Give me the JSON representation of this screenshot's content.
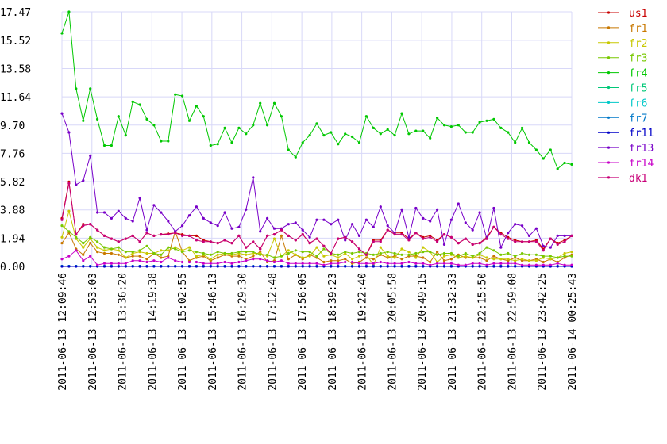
{
  "chart_data": {
    "type": "line",
    "title": "",
    "xlabel": "",
    "ylabel": "",
    "ylim": [
      0,
      17.47
    ],
    "y_ticks": [
      "0.00",
      "1.94",
      "3.88",
      "5.82",
      "7.76",
      "9.70",
      "11.64",
      "13.58",
      "15.52",
      "17.47"
    ],
    "x_ticks": [
      "2011-06-13 12:09:46",
      "2011-06-13 12:53:03",
      "2011-06-13 13:36:20",
      "2011-06-13 14:19:38",
      "2011-06-13 15:02:55",
      "2011-06-13 15:46:13",
      "2011-06-13 16:29:30",
      "2011-06-13 17:12:48",
      "2011-06-13 17:56:05",
      "2011-06-13 18:39:23",
      "2011-06-13 19:22:40",
      "2011-06-13 20:05:58",
      "2011-06-13 20:49:15",
      "2011-06-13 21:32:33",
      "2011-06-13 22:15:50",
      "2011-06-13 22:59:08",
      "2011-06-13 23:42:25",
      "2011-06-14 00:25:43"
    ],
    "grid": true,
    "legend_position": "right",
    "series": [
      {
        "name": "us1",
        "color": "#c80000",
        "values": [
          3.3,
          5.8,
          2.2,
          2.9,
          2.9,
          2.5,
          2.1,
          1.9,
          1.7,
          1.9,
          2.1,
          1.7,
          2.3,
          2.1,
          2.2,
          2.25,
          2.3,
          2.2,
          2.1,
          2.1,
          1.8,
          1.7,
          1.6,
          1.8,
          1.6,
          2.1,
          1.3,
          1.7,
          1.2,
          2.1,
          2.2,
          2.5,
          2.1,
          1.8,
          2.2,
          1.6,
          1.9,
          1.4,
          0.9,
          1.9,
          2.0,
          1.7,
          1.2,
          0.8,
          1.8,
          1.8,
          2.5,
          2.3,
          2.3,
          1.9,
          2.3,
          2.0,
          2.1,
          1.8,
          2.2,
          2.0,
          1.6,
          1.9,
          1.5,
          1.6,
          2.0,
          2.7,
          2.3,
          2.0,
          1.8,
          1.7,
          1.7,
          1.8,
          1.2,
          1.9,
          1.6,
          1.8,
          2.1
        ]
      },
      {
        "name": "fr1",
        "color": "#c87800",
        "values": [
          1.6,
          2.3,
          1.2,
          0.8,
          1.6,
          1.0,
          0.9,
          0.9,
          0.8,
          0.6,
          0.7,
          0.7,
          0.5,
          0.9,
          0.6,
          0.7,
          2.4,
          1.0,
          0.4,
          0.6,
          0.7,
          0.4,
          0.6,
          0.8,
          0.7,
          0.7,
          0.5,
          0.7,
          1.0,
          0.3,
          0.4,
          2.1,
          0.5,
          0.8,
          0.5,
          0.8,
          0.6,
          0.3,
          0.4,
          0.4,
          0.5,
          0.2,
          0.3,
          0.6,
          0.5,
          0.8,
          0.6,
          0.7,
          0.5,
          0.7,
          0.7,
          0.6,
          0.3,
          1.0,
          0.4,
          0.5,
          0.8,
          0.6,
          0.6,
          0.6,
          0.4,
          0.7,
          0.5,
          0.4,
          0.6,
          0.4,
          0.4,
          0.5,
          0.3,
          0.5,
          0.3,
          0.6,
          0.8
        ]
      },
      {
        "name": "fr2",
        "color": "#c8c800",
        "values": [
          2.0,
          3.8,
          1.9,
          1.3,
          1.9,
          1.3,
          1.1,
          1.2,
          1.1,
          0.6,
          0.9,
          1.0,
          0.9,
          0.9,
          1.1,
          1.1,
          1.3,
          1.1,
          1.3,
          0.7,
          0.8,
          0.5,
          0.8,
          0.9,
          0.8,
          0.9,
          0.8,
          0.9,
          0.9,
          0.7,
          1.9,
          0.7,
          1.1,
          0.8,
          0.6,
          0.7,
          1.3,
          0.7,
          0.8,
          0.6,
          0.9,
          0.5,
          0.7,
          0.8,
          0.1,
          1.3,
          0.7,
          0.6,
          1.2,
          1.0,
          0.6,
          1.3,
          1.0,
          0.3,
          0.7,
          0.8,
          0.6,
          0.7,
          0.6,
          0.8,
          0.6,
          0.5,
          0.5,
          0.5,
          0.4,
          0.5,
          0.4,
          0.4,
          0.6,
          0.5,
          0.6,
          0.9,
          1.0
        ]
      },
      {
        "name": "fr3",
        "color": "#78c800",
        "values": [
          2.8,
          2.4,
          2.0,
          1.6,
          2.0,
          1.7,
          1.3,
          1.2,
          1.3,
          1.0,
          1.0,
          1.1,
          1.4,
          0.9,
          0.8,
          1.3,
          1.2,
          1.0,
          1.1,
          1.0,
          0.9,
          0.8,
          1.0,
          0.9,
          0.9,
          1.0,
          1.0,
          1.0,
          0.8,
          0.8,
          0.6,
          0.7,
          0.9,
          1.1,
          1.0,
          1.0,
          0.7,
          1.2,
          0.9,
          0.8,
          1.0,
          0.9,
          1.0,
          0.9,
          0.8,
          0.9,
          1.0,
          0.9,
          0.8,
          0.8,
          0.9,
          1.0,
          1.0,
          0.8,
          0.9,
          0.9,
          0.7,
          0.9,
          0.7,
          0.9,
          1.3,
          1.1,
          0.8,
          0.9,
          0.7,
          0.9,
          0.8,
          0.8,
          0.7,
          0.7,
          0.6,
          0.7,
          0.7
        ]
      },
      {
        "name": "fr4",
        "color": "#00c800",
        "values": [
          16.0,
          17.47,
          12.2,
          10.0,
          12.2,
          10.1,
          8.3,
          8.3,
          10.3,
          9.0,
          11.3,
          11.1,
          10.1,
          9.7,
          8.6,
          8.6,
          11.8,
          11.7,
          10.0,
          11.0,
          10.3,
          8.3,
          8.4,
          9.5,
          8.5,
          9.5,
          9.1,
          9.7,
          11.2,
          9.7,
          11.2,
          10.3,
          8.0,
          7.5,
          8.5,
          9.0,
          9.8,
          9.0,
          9.2,
          8.4,
          9.1,
          8.9,
          8.5,
          10.3,
          9.5,
          9.1,
          9.4,
          9.0,
          10.5,
          9.1,
          9.3,
          9.3,
          8.8,
          10.2,
          9.7,
          9.6,
          9.7,
          9.2,
          9.2,
          9.9,
          10.0,
          10.1,
          9.5,
          9.2,
          8.5,
          9.5,
          8.5,
          8.0,
          7.4,
          8.0,
          6.7,
          7.1,
          7.0
        ]
      },
      {
        "name": "fr5",
        "color": "#00c878",
        "values": [
          0.02,
          0.02,
          0.02,
          0.02,
          0.02,
          0.02,
          0.02,
          0.02,
          0.02,
          0.02,
          0.02,
          0.02,
          0.02,
          0.02,
          0.02,
          0.02,
          0.02,
          0.02,
          0.02,
          0.02,
          0.02,
          0.02,
          0.02,
          0.02,
          0.02,
          0.02,
          0.02,
          0.02,
          0.02,
          0.02,
          0.02,
          0.02,
          0.02,
          0.02,
          0.02,
          0.02,
          0.02,
          0.02,
          0.02,
          0.02,
          0.02,
          0.02,
          0.02,
          0.02,
          0.02,
          0.02,
          0.02,
          0.02,
          0.02,
          0.02,
          0.02,
          0.02,
          0.02,
          0.02,
          0.02,
          0.02,
          0.02,
          0.02,
          0.02,
          0.02,
          0.02,
          0.02,
          0.02,
          0.02,
          0.02,
          0.02,
          0.02,
          0.02,
          0.02,
          0.02,
          0.02,
          0.02,
          0.02
        ]
      },
      {
        "name": "fr6",
        "color": "#00c8c8",
        "values": [
          0.02,
          0.02,
          0.02,
          0.02,
          0.02,
          0.02,
          0.02,
          0.02,
          0.02,
          0.02,
          0.02,
          0.02,
          0.02,
          0.02,
          0.02,
          0.02,
          0.02,
          0.02,
          0.02,
          0.02,
          0.02,
          0.02,
          0.02,
          0.02,
          0.02,
          0.02,
          0.02,
          0.02,
          0.02,
          0.02,
          0.02,
          0.02,
          0.02,
          0.02,
          0.02,
          0.02,
          0.02,
          0.02,
          0.02,
          0.02,
          0.02,
          0.02,
          0.02,
          0.02,
          0.02,
          0.02,
          0.02,
          0.02,
          0.02,
          0.02,
          0.02,
          0.02,
          0.02,
          0.02,
          0.02,
          0.02,
          0.02,
          0.02,
          0.02,
          0.02,
          0.02,
          0.02,
          0.02,
          0.02,
          0.02,
          0.02,
          0.02,
          0.02,
          0.02,
          0.02,
          0.02,
          0.02,
          0.02
        ]
      },
      {
        "name": "fr7",
        "color": "#0078c8",
        "values": [
          0.02,
          0.02,
          0.02,
          0.02,
          0.02,
          0.02,
          0.02,
          0.02,
          0.02,
          0.02,
          0.02,
          0.02,
          0.02,
          0.02,
          0.02,
          0.02,
          0.02,
          0.02,
          0.02,
          0.02,
          0.02,
          0.02,
          0.02,
          0.02,
          0.02,
          0.02,
          0.02,
          0.02,
          0.02,
          0.02,
          0.02,
          0.02,
          0.02,
          0.02,
          0.02,
          0.02,
          0.02,
          0.02,
          0.02,
          0.02,
          0.02,
          0.02,
          0.02,
          0.02,
          0.02,
          0.02,
          0.02,
          0.02,
          0.02,
          0.02,
          0.02,
          0.02,
          0.02,
          0.02,
          0.02,
          0.02,
          0.02,
          0.02,
          0.02,
          0.02,
          0.02,
          0.02,
          0.02,
          0.02,
          0.02,
          0.02,
          0.02,
          0.02,
          0.02,
          0.02,
          0.02,
          0.02,
          0.02
        ]
      },
      {
        "name": "fr11",
        "color": "#0000c8",
        "values": [
          0.0,
          0.0,
          0.0,
          0.0,
          0.0,
          0.0,
          0.0,
          0.0,
          0.0,
          0.0,
          0.0,
          0.0,
          0.0,
          0.0,
          0.0,
          0.0,
          0.0,
          0.0,
          0.0,
          0.0,
          0.0,
          0.0,
          0.0,
          0.0,
          0.0,
          0.0,
          0.0,
          0.0,
          0.0,
          0.0,
          0.0,
          0.0,
          0.0,
          0.0,
          0.0,
          0.0,
          0.0,
          0.0,
          0.0,
          0.0,
          0.0,
          0.0,
          0.0,
          0.0,
          0.0,
          0.0,
          0.0,
          0.0,
          0.0,
          0.0,
          0.0,
          0.0,
          0.0,
          0.0,
          0.0,
          0.0,
          0.0,
          0.0,
          0.0,
          0.0,
          0.0,
          0.0,
          0.0,
          0.0,
          0.0,
          0.0,
          0.0,
          0.0,
          0.0,
          0.0,
          0.0,
          0.0,
          0.0
        ]
      },
      {
        "name": "fr13",
        "color": "#7800c8",
        "values": [
          10.5,
          9.2,
          5.6,
          5.9,
          7.6,
          3.7,
          3.7,
          3.3,
          3.8,
          3.3,
          3.1,
          4.7,
          2.5,
          4.2,
          3.7,
          3.1,
          2.4,
          2.8,
          3.5,
          4.1,
          3.3,
          3.0,
          2.8,
          3.7,
          2.6,
          2.7,
          3.9,
          6.1,
          2.4,
          3.3,
          2.6,
          2.6,
          2.9,
          3.0,
          2.5,
          2.0,
          3.2,
          3.2,
          2.9,
          3.2,
          1.8,
          2.9,
          2.1,
          3.2,
          2.7,
          4.1,
          2.8,
          2.3,
          3.9,
          2.0,
          4.0,
          3.3,
          3.1,
          3.9,
          1.5,
          3.2,
          4.3,
          3.0,
          2.5,
          3.7,
          1.9,
          4.0,
          1.3,
          2.3,
          2.9,
          2.8,
          2.1,
          2.6,
          1.4,
          1.3,
          2.1,
          2.1,
          2.1
        ]
      },
      {
        "name": "fr14",
        "color": "#c800c8",
        "values": [
          0.5,
          0.7,
          1.1,
          0.4,
          0.7,
          0.1,
          0.2,
          0.2,
          0.2,
          0.2,
          0.4,
          0.4,
          0.3,
          0.4,
          0.3,
          0.6,
          0.4,
          0.3,
          0.3,
          0.3,
          0.2,
          0.2,
          0.2,
          0.3,
          0.2,
          0.3,
          0.4,
          0.5,
          0.5,
          0.4,
          0.3,
          0.4,
          0.2,
          0.2,
          0.2,
          0.2,
          0.2,
          0.1,
          0.2,
          0.2,
          0.3,
          0.3,
          0.2,
          0.2,
          0.2,
          0.3,
          0.2,
          0.2,
          0.2,
          0.3,
          0.2,
          0.2,
          0.1,
          0.2,
          0.2,
          0.2,
          0.1,
          0.1,
          0.2,
          0.2,
          0.1,
          0.2,
          0.2,
          0.2,
          0.2,
          0.1,
          0.1,
          0.1,
          0.1,
          0.1,
          0.2,
          0.1,
          0.1
        ]
      },
      {
        "name": "dk1",
        "color": "#c80078",
        "values": [
          3.2,
          5.7,
          2.2,
          2.8,
          2.9,
          2.5,
          2.1,
          1.9,
          1.7,
          1.9,
          2.1,
          1.7,
          2.3,
          2.1,
          2.2,
          2.2,
          2.3,
          2.1,
          2.1,
          1.8,
          1.7,
          1.7,
          1.6,
          1.8,
          1.6,
          2.1,
          1.3,
          1.7,
          1.2,
          2.1,
          2.2,
          2.5,
          2.1,
          1.8,
          2.2,
          1.6,
          1.9,
          1.4,
          0.9,
          1.9,
          2.0,
          1.7,
          1.2,
          0.8,
          1.7,
          1.7,
          2.5,
          2.2,
          2.2,
          1.8,
          2.3,
          1.9,
          2.0,
          1.7,
          2.2,
          2.0,
          1.6,
          1.9,
          1.5,
          1.6,
          1.9,
          2.7,
          2.2,
          1.9,
          1.7,
          1.7,
          1.7,
          1.7,
          1.1,
          1.9,
          1.5,
          1.7,
          2.1
        ]
      }
    ]
  }
}
